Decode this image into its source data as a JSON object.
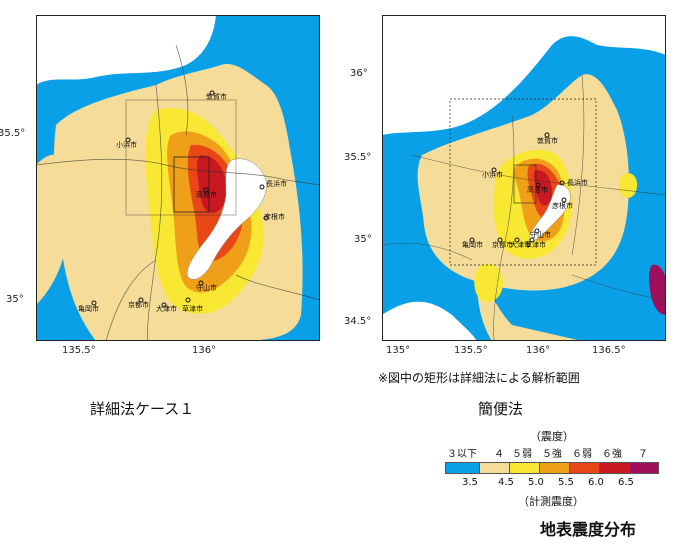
{
  "left_map": {
    "caption": "詳細法ケース１",
    "x_ticks": [
      "135.5°",
      "136°"
    ],
    "y_ticks": [
      "35.5°",
      "35°"
    ],
    "cities": [
      "敦賀市",
      "小浜市",
      "長浜市",
      "彦根市",
      "高島市",
      "亀岡市",
      "京都市",
      "大津市",
      "草津市",
      "守山市"
    ]
  },
  "right_map": {
    "caption": "簡便法",
    "x_ticks": [
      "135°",
      "135.5°",
      "136°",
      "136.5°"
    ],
    "y_ticks": [
      "36°",
      "35.5°",
      "35°",
      "34.5°"
    ],
    "cities": [
      "敦賀市",
      "小浜市",
      "長浜市",
      "彦根市",
      "高島市",
      "亀岡市",
      "京都市",
      "大津市",
      "草津市",
      "守山市"
    ]
  },
  "note": "※図中の矩形は詳細法による解析範囲",
  "legend": {
    "title_top": "（震度）",
    "intensity_labels": [
      "３以下",
      "４",
      "５弱",
      "５強",
      "６弱",
      "６強",
      "７"
    ],
    "value_labels": [
      "3.5",
      "4.5",
      "5.0",
      "5.5",
      "6.0",
      "6.5"
    ],
    "title_bottom": "（計測震度）",
    "colors": [
      "#0aa0e8",
      "#f5dc98",
      "#f8e834",
      "#f0a018",
      "#e84818",
      "#c81820",
      "#a0105a"
    ],
    "main_title": "地表震度分布"
  }
}
